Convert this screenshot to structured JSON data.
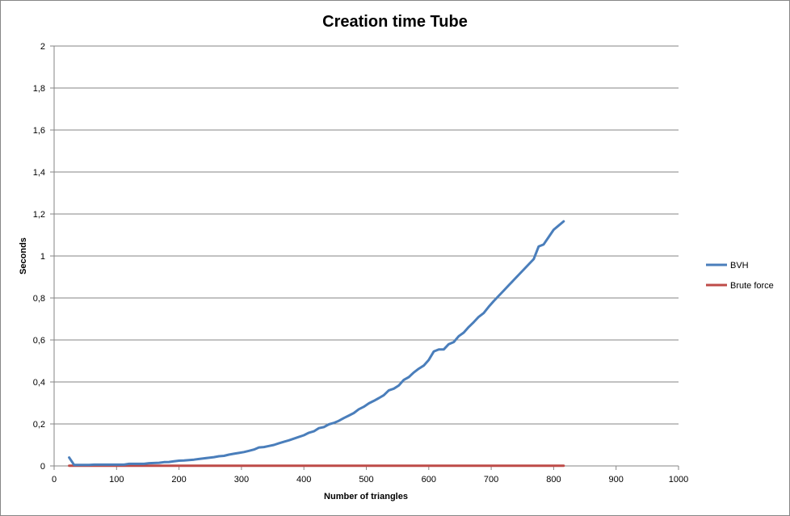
{
  "chart_data": {
    "type": "line",
    "title": "Creation time Tube",
    "xlabel": "Number of triangles",
    "ylabel": "Seconds",
    "xlim": [
      0,
      1000
    ],
    "ylim": [
      0,
      2
    ],
    "x_ticks": [
      "0",
      "100",
      "200",
      "300",
      "400",
      "500",
      "600",
      "700",
      "800",
      "900",
      "1000"
    ],
    "y_ticks": [
      "0",
      "0,2",
      "0,4",
      "0,6",
      "0,8",
      "1",
      "1,2",
      "1,4",
      "1,6",
      "1,8",
      "2"
    ],
    "grid": "horizontal",
    "legend": "right",
    "series": [
      {
        "name": "BVH",
        "color": "#4A7EBB",
        "x": [
          24,
          32,
          40,
          48,
          56,
          64,
          72,
          80,
          88,
          96,
          104,
          112,
          120,
          128,
          136,
          144,
          152,
          160,
          168,
          176,
          184,
          192,
          200,
          208,
          216,
          224,
          232,
          240,
          248,
          256,
          264,
          272,
          280,
          288,
          296,
          304,
          312,
          320,
          328,
          336,
          344,
          352,
          360,
          368,
          376,
          384,
          392,
          400,
          408,
          416,
          424,
          432,
          440,
          448,
          456,
          464,
          472,
          480,
          488,
          496,
          504,
          512,
          520,
          528,
          536,
          544,
          552,
          560,
          568,
          576,
          584,
          592,
          600,
          608,
          616,
          624,
          632,
          640,
          648,
          656,
          664,
          672,
          680,
          688,
          696,
          704,
          712,
          720,
          728,
          736,
          744,
          752,
          760,
          768,
          776,
          784,
          792,
          800,
          808,
          816
        ],
        "y": [
          0.04,
          0.005,
          0.005,
          0.005,
          0.005,
          0.006,
          0.006,
          0.006,
          0.006,
          0.006,
          0.006,
          0.006,
          0.01,
          0.01,
          0.01,
          0.01,
          0.013,
          0.014,
          0.015,
          0.018,
          0.019,
          0.022,
          0.025,
          0.026,
          0.028,
          0.03,
          0.033,
          0.036,
          0.039,
          0.042,
          0.046,
          0.048,
          0.054,
          0.058,
          0.062,
          0.066,
          0.072,
          0.078,
          0.088,
          0.09,
          0.095,
          0.1,
          0.108,
          0.115,
          0.122,
          0.13,
          0.138,
          0.146,
          0.158,
          0.165,
          0.18,
          0.185,
          0.198,
          0.205,
          0.215,
          0.228,
          0.24,
          0.252,
          0.27,
          0.282,
          0.298,
          0.31,
          0.323,
          0.337,
          0.36,
          0.368,
          0.383,
          0.41,
          0.423,
          0.445,
          0.463,
          0.478,
          0.505,
          0.545,
          0.555,
          0.555,
          0.58,
          0.59,
          0.618,
          0.635,
          0.662,
          0.685,
          0.71,
          0.728,
          0.758,
          0.785,
          0.81,
          0.835,
          0.86,
          0.885,
          0.91,
          0.935,
          0.96,
          0.985,
          1.045,
          1.055,
          1.09,
          1.125,
          1.145,
          1.165
        ]
      },
      {
        "name": "Brute force",
        "color": "#BE4B48",
        "x": [
          24,
          816
        ],
        "y": [
          0.001,
          0.001
        ]
      }
    ]
  }
}
